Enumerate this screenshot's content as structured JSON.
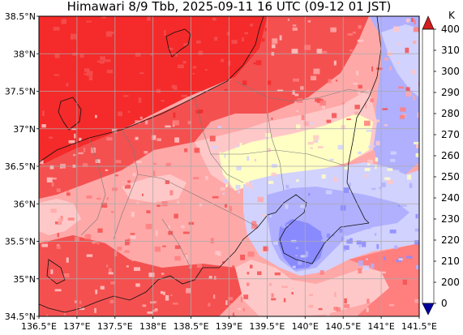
{
  "map": {
    "title": "Himawari 8/9 Tbb, 2025-09-11 16 UTC (09-12 01 JST)",
    "extent": {
      "lon": [
        136.5,
        141.5
      ],
      "lat": [
        34.5,
        38.5
      ]
    },
    "lon_ticks": [
      "136.5°E",
      "137°E",
      "137.5°E",
      "138°E",
      "138.5°E",
      "139°E",
      "139.5°E",
      "140°E",
      "140.5°E",
      "141°E",
      "141.5°E"
    ],
    "lat_ticks": [
      "34.5°N",
      "35°N",
      "35.5°N",
      "36°N",
      "36.5°N",
      "37°N",
      "37.5°N",
      "38°N",
      "38.5°N"
    ],
    "gridlines": true
  },
  "colorbar": {
    "units": "K",
    "levels": [
      "0",
      "200",
      "210",
      "220",
      "230",
      "240",
      "250",
      "260",
      "270",
      "280",
      "290",
      "300",
      "310",
      "400"
    ],
    "colors": [
      "#0000a0",
      "#1f1fe6",
      "#5252ff",
      "#8a8aff",
      "#b0b0ff",
      "#d2d2ff",
      "#ffffc4",
      "#ffc8c8",
      "#ffa8a8",
      "#ff7e7e",
      "#f45050",
      "#f52a2a",
      "#d11e1e"
    ],
    "extend": "both"
  },
  "chart_data": {
    "type": "heatmap",
    "title": "Himawari 8/9 Tbb, 2025-09-11 16 UTC (09-12 01 JST)",
    "xlabel": "",
    "ylabel": "",
    "xlim": [
      136.5,
      141.5
    ],
    "ylim": [
      34.5,
      38.5
    ],
    "colorbar_label": "K",
    "colorbar_range": [
      0,
      400
    ],
    "grid": true
  }
}
